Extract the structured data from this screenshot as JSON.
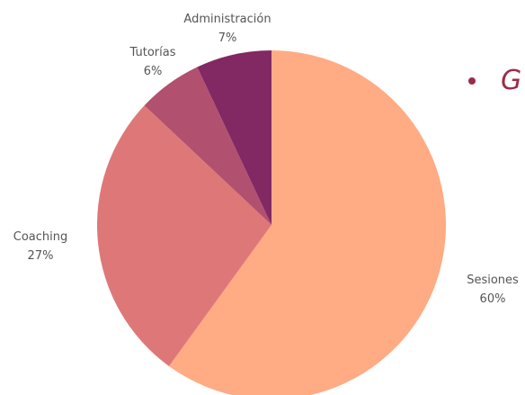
{
  "chart_data": {
    "type": "pie",
    "start_angle_deg": 0,
    "direction": "clockwise",
    "slices": [
      {
        "label": "Sesiones",
        "percent_label": "60%",
        "value": 60,
        "color": "#ffab84"
      },
      {
        "label": "Coaching",
        "percent_label": "27%",
        "value": 27,
        "color": "#de7878"
      },
      {
        "label": "Tutorías",
        "percent_label": "6%",
        "value": 6,
        "color": "#b2506f"
      },
      {
        "label": "Administración",
        "percent_label": "7%",
        "value": 7,
        "color": "#822863"
      }
    ]
  },
  "legend": {
    "text": "G",
    "color": "#9b2b48",
    "placement": "top-right"
  }
}
